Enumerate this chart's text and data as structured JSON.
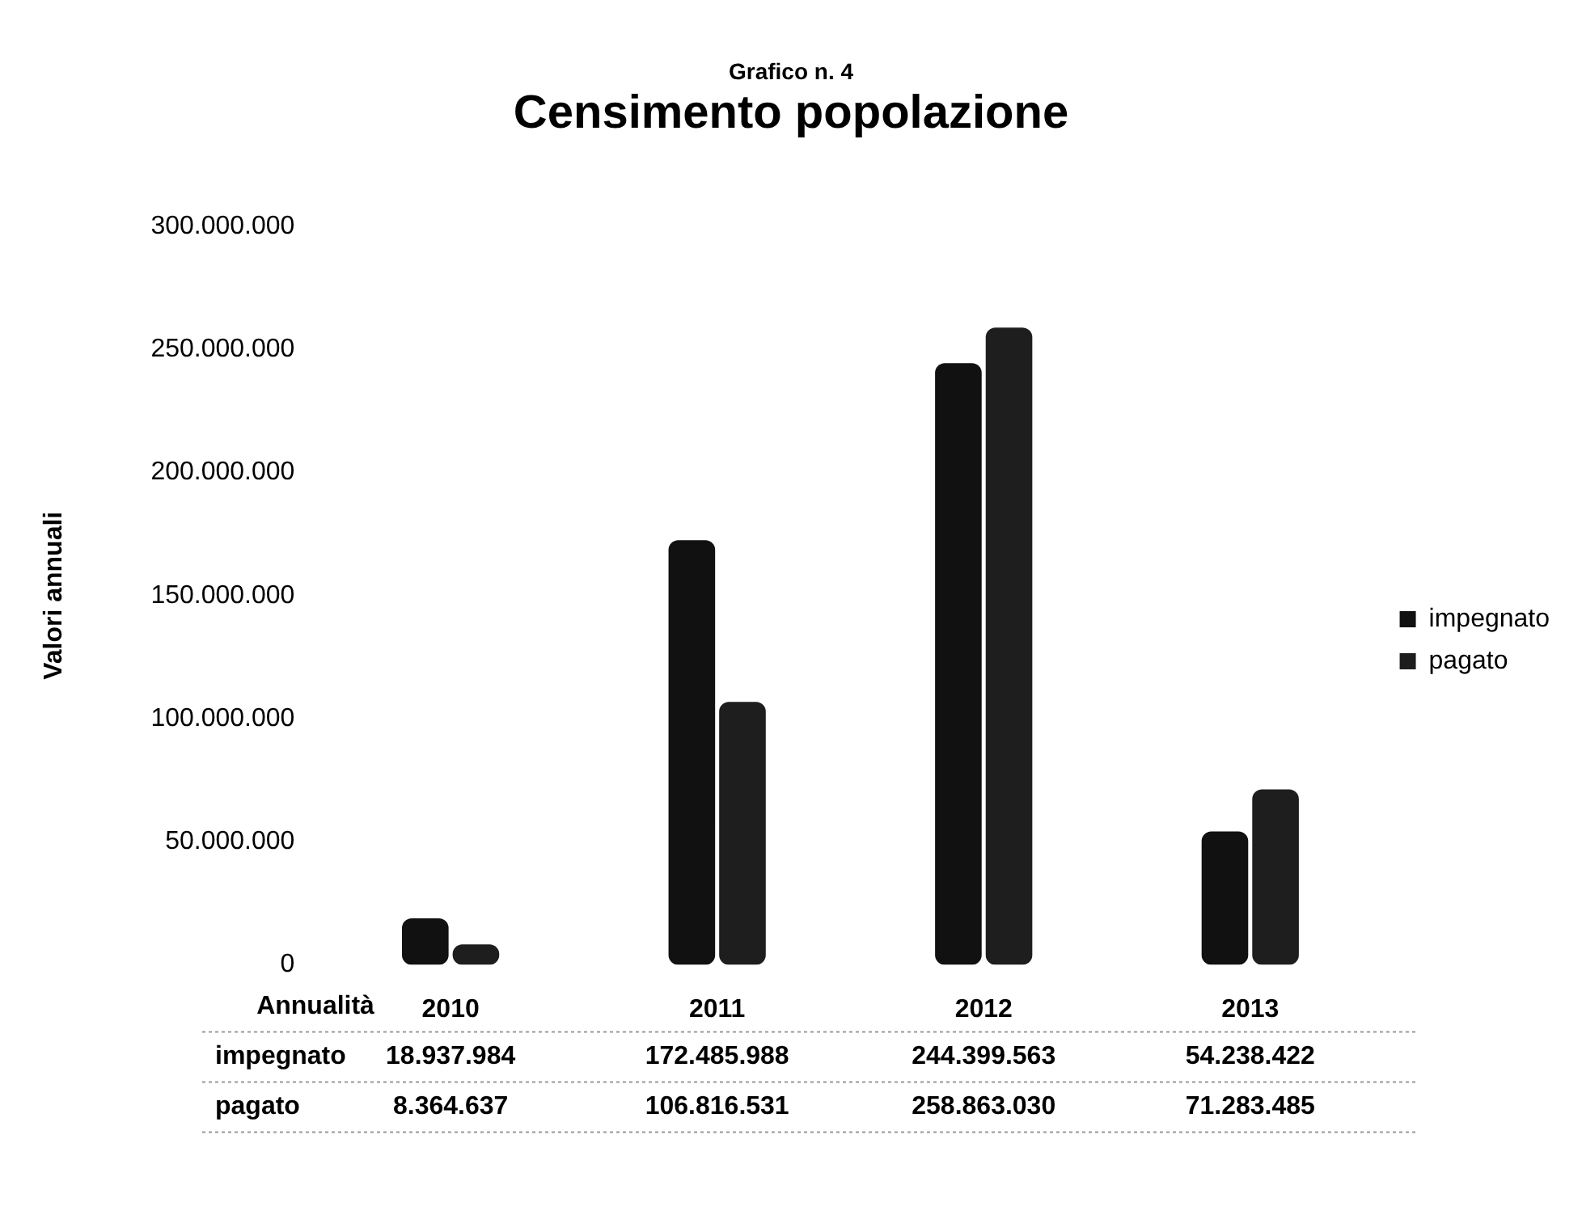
{
  "chart_data": {
    "type": "bar",
    "subtitle": "Grafico n. 4",
    "title": "Censimento popolazione",
    "ylabel": "Valori annuali",
    "xlabel": "Annualità",
    "categories": [
      "2010",
      "2011",
      "2012",
      "2013"
    ],
    "series": [
      {
        "name": "impegnato",
        "color": "#111111",
        "values": [
          18937984,
          172485988,
          244399563,
          54238422
        ],
        "value_labels": [
          "18.937.984",
          "172.485.988",
          "244.399.563",
          "54.238.422"
        ]
      },
      {
        "name": "pagato",
        "color": "#1e1e1e",
        "values": [
          8364637,
          106816531,
          258863030,
          71283485
        ],
        "value_labels": [
          "8.364.637",
          "106.816.531",
          "258.863.030",
          "71.283.485"
        ]
      }
    ],
    "ylim": [
      0,
      300000000
    ],
    "yticks": [
      {
        "value": 0,
        "label": "0"
      },
      {
        "value": 50000000,
        "label": "50.000.000"
      },
      {
        "value": 100000000,
        "label": "100.000.000"
      },
      {
        "value": 150000000,
        "label": "150.000.000"
      },
      {
        "value": 200000000,
        "label": "200.000.000"
      },
      {
        "value": 250000000,
        "label": "250.000.000"
      },
      {
        "value": 300000000,
        "label": "300.000.000"
      }
    ],
    "grid": false,
    "legend": "right"
  }
}
